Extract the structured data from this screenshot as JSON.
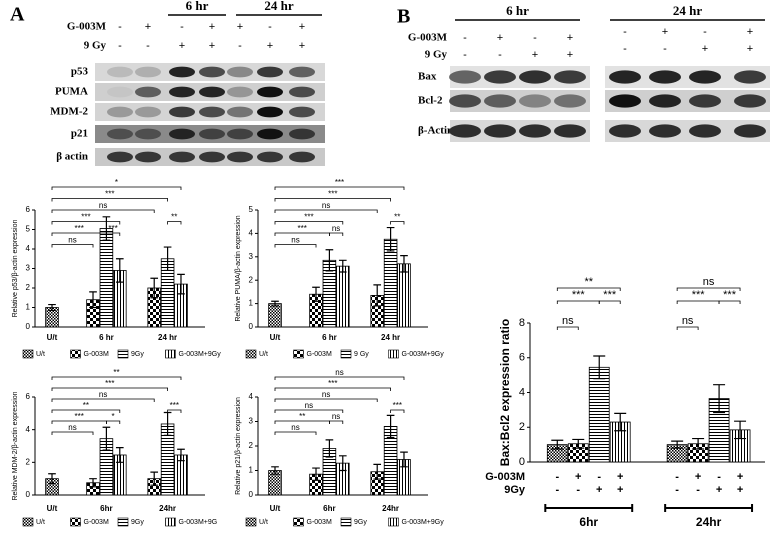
{
  "panel_labels": {
    "a": "A",
    "b": "B"
  },
  "blot_a": {
    "time_labels": [
      "6 hr",
      "24 hr"
    ],
    "treatment_rows": [
      {
        "label": "G-003M",
        "signs": [
          "-",
          "+",
          "-",
          "+",
          "+",
          "-",
          "+"
        ]
      },
      {
        "label": "9 Gy",
        "signs": [
          "-",
          "-",
          "+",
          "+",
          "-",
          "+",
          "+"
        ]
      }
    ],
    "bands": [
      "p53",
      "PUMA",
      "MDM-2",
      "p21",
      "β actin"
    ]
  },
  "blot_b": {
    "time_labels": [
      "6 hr",
      "24 hr"
    ],
    "treatment_rows": [
      {
        "label": "G-003M",
        "signs": [
          "-",
          "+",
          "-",
          "+",
          "-",
          "+",
          "-",
          "+"
        ]
      },
      {
        "label": "9 Gy",
        "signs": [
          "-",
          "-",
          "+",
          "+",
          "-",
          "-",
          "+",
          "+"
        ]
      }
    ],
    "bands": [
      "Bax",
      "Bcl-2",
      "β-Actin"
    ]
  },
  "chart_data": [
    {
      "type": "bar",
      "y_label": "Relative p53/β-actin expression",
      "categories": [
        "U/t",
        "6 hr",
        "24 hr"
      ],
      "series": [
        {
          "name": "U/t",
          "color": "#000000",
          "values": [
            1.0,
            null,
            null
          ],
          "errors": [
            0.15,
            null,
            null
          ]
        },
        {
          "name": "G-003M",
          "color": "#000000",
          "values": [
            null,
            1.4,
            2.0
          ],
          "errors": [
            null,
            0.4,
            0.5
          ]
        },
        {
          "name": "9Gy",
          "color": "#000000",
          "values": [
            null,
            5.05,
            3.5
          ],
          "errors": [
            null,
            0.6,
            0.6
          ]
        },
        {
          "name": "G-003M+9Gy",
          "color": "#000000",
          "values": [
            null,
            2.9,
            2.2
          ],
          "errors": [
            null,
            0.6,
            0.5
          ]
        }
      ],
      "ylim": [
        0,
        6
      ],
      "yticks": [
        0,
        1,
        2,
        3,
        4,
        5,
        6
      ],
      "annotations": [
        "*",
        "***",
        "ns",
        "***",
        "***",
        "ns",
        "***",
        "**"
      ]
    },
    {
      "type": "bar",
      "y_label": "Relative PUMA/β-actin expression",
      "categories": [
        "U/t",
        "6 hr",
        "24 hr"
      ],
      "series": [
        {
          "name": "U/t",
          "color": "#000000",
          "values": [
            1.0,
            null,
            null
          ],
          "errors": [
            0.1,
            null,
            null
          ]
        },
        {
          "name": "G-003M",
          "color": "#000000",
          "values": [
            null,
            1.4,
            1.35
          ],
          "errors": [
            null,
            0.3,
            0.45
          ]
        },
        {
          "name": "9 Gy",
          "color": "#000000",
          "values": [
            null,
            2.85,
            3.75
          ],
          "errors": [
            null,
            0.45,
            0.5
          ]
        },
        {
          "name": "G-003M+9Gy",
          "color": "#000000",
          "values": [
            null,
            2.6,
            2.7
          ],
          "errors": [
            null,
            0.25,
            0.35
          ]
        }
      ],
      "ylim": [
        0,
        5
      ],
      "yticks": [
        0,
        1,
        2,
        3,
        4,
        5
      ],
      "annotations": [
        "***",
        "***",
        "ns",
        "***",
        "***",
        "ns",
        "ns",
        "**"
      ]
    },
    {
      "type": "bar",
      "y_label": "Relative MDM-2/β-actin expression",
      "categories": [
        "U/t",
        "6hr",
        "24hr"
      ],
      "series": [
        {
          "name": "U/t",
          "color": "#000000",
          "values": [
            1.0,
            null,
            null
          ],
          "errors": [
            0.3,
            null,
            null
          ]
        },
        {
          "name": "G-003M",
          "color": "#000000",
          "values": [
            null,
            0.75,
            1.0
          ],
          "errors": [
            null,
            0.25,
            0.4
          ]
        },
        {
          "name": "9Gy",
          "color": "#000000",
          "values": [
            null,
            3.45,
            4.35
          ],
          "errors": [
            null,
            0.7,
            0.7
          ]
        },
        {
          "name": "G-003M+9G",
          "color": "#000000",
          "values": [
            null,
            2.45,
            2.45
          ],
          "errors": [
            null,
            0.45,
            0.35
          ]
        }
      ],
      "ylim": [
        0,
        6
      ],
      "yticks": [
        0,
        2,
        4,
        6
      ],
      "annotations": [
        "**",
        "***",
        "ns",
        "**",
        "***",
        "ns",
        "*",
        "***"
      ]
    },
    {
      "type": "bar",
      "y_label": "Relative p21/β-actin expression",
      "categories": [
        "U/t",
        "6hr",
        "24hr"
      ],
      "series": [
        {
          "name": "U/t",
          "color": "#000000",
          "values": [
            1.0,
            null,
            null
          ],
          "errors": [
            0.15,
            null,
            null
          ]
        },
        {
          "name": "G-003M",
          "color": "#000000",
          "values": [
            null,
            0.85,
            0.95
          ],
          "errors": [
            null,
            0.25,
            0.3
          ]
        },
        {
          "name": "9Gy",
          "color": "#000000",
          "values": [
            null,
            1.9,
            2.8
          ],
          "errors": [
            null,
            0.35,
            0.45
          ]
        },
        {
          "name": "G-003M+9Gy",
          "color": "#000000",
          "values": [
            null,
            1.3,
            1.45
          ],
          "errors": [
            null,
            0.3,
            0.3
          ]
        }
      ],
      "ylim": [
        0,
        4
      ],
      "yticks": [
        0,
        1,
        2,
        3,
        4
      ],
      "annotations": [
        "ns",
        "***",
        "ns",
        "ns",
        "**",
        "ns",
        "ns",
        "***"
      ]
    },
    {
      "type": "bar",
      "y_label": "Bax:Bcl2 expression ratio",
      "categories": [
        "6hr",
        "24hr"
      ],
      "series": [
        {
          "color": "#000000",
          "values": [
            1.0,
            1.0
          ],
          "errors": [
            0.25,
            0.2
          ]
        },
        {
          "color": "#000000",
          "values": [
            1.05,
            1.05
          ],
          "errors": [
            0.25,
            0.3
          ]
        },
        {
          "color": "#000000",
          "values": [
            5.45,
            3.65
          ],
          "errors": [
            0.65,
            0.8
          ]
        },
        {
          "color": "#000000",
          "values": [
            2.3,
            1.85
          ],
          "errors": [
            0.5,
            0.5
          ]
        }
      ],
      "ylim": [
        0,
        8
      ],
      "yticks": [
        0,
        2,
        4,
        6,
        8
      ],
      "treatment_rows": [
        {
          "label": "G-003M",
          "signs": [
            "-",
            "+",
            "-",
            "+",
            "-",
            "+",
            "-",
            "+"
          ]
        },
        {
          "label": "9Gy",
          "signs": [
            "-",
            "-",
            "+",
            "+",
            "-",
            "-",
            "+",
            "+"
          ]
        }
      ],
      "annotations": [
        "**",
        "***",
        "ns",
        "***",
        "ns",
        "***",
        "ns",
        "***"
      ]
    }
  ]
}
